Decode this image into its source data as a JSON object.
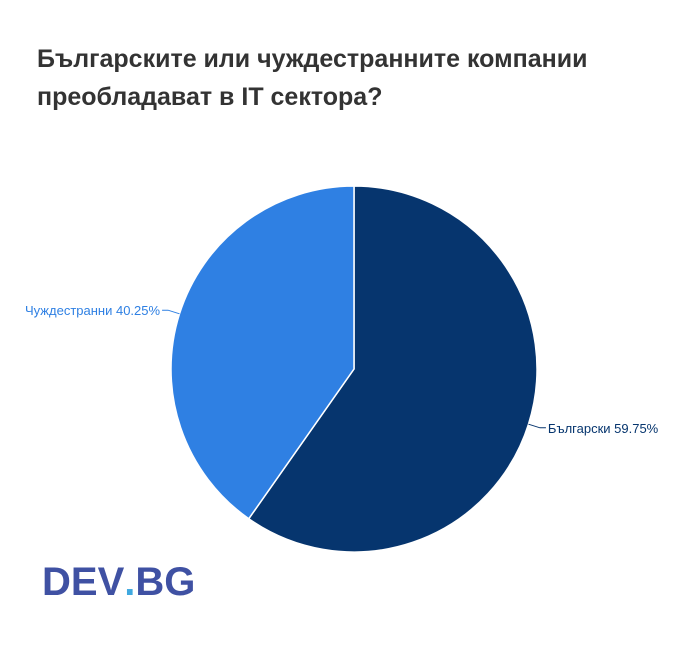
{
  "title_lines": [
    "Българските или чуждестранните компании",
    "преобладават в IT сектора?"
  ],
  "colors": {
    "title": "#333333",
    "bulgarian": "#06356e",
    "foreign": "#2f80e3",
    "logo": "#3f51a3",
    "logo_dot": "#3fa9e0"
  },
  "logo": {
    "left": "DEV",
    "dot": ".",
    "right": "BG"
  },
  "chart_data": {
    "type": "pie",
    "title": "Българските или чуждестранните компании преобладават в IT сектора?",
    "start_angle_deg": 0,
    "direction": "clockwise",
    "slices": [
      {
        "label": "Български",
        "value": 59.75,
        "display": "Български 59.75%",
        "color": "#06356e"
      },
      {
        "label": "Чуждестранни",
        "value": 40.25,
        "display": "Чуждестранни 40.25%",
        "color": "#2f80e3"
      }
    ]
  }
}
